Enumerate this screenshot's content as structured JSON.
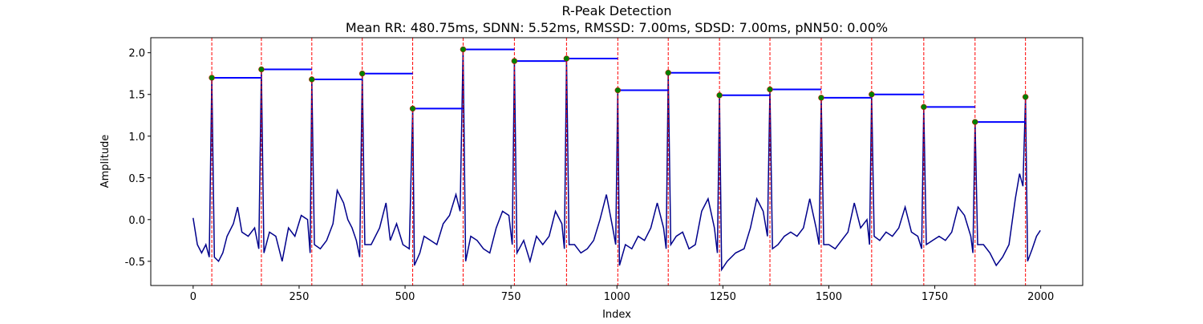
{
  "chart_data": {
    "type": "line",
    "title": "R-Peak Detection",
    "subtitle": "Mean RR: 480.75ms, SDNN: 5.52ms, RMSSD: 7.00ms, SDSD: 7.00ms, pNN50: 0.00%",
    "xlabel": "Index",
    "ylabel": "Amplitude",
    "xlim": [
      -100,
      2099
    ],
    "ylim": [
      -0.79,
      2.18
    ],
    "xticks": [
      0,
      250,
      500,
      750,
      1000,
      1250,
      1500,
      1750,
      2000
    ],
    "yticks": [
      -0.5,
      {
        "value": 0,
        "label": "0.0"
      },
      0.5,
      {
        "value": 1,
        "label": "1.0"
      },
      1.5,
      {
        "value": 2,
        "label": "2.0"
      }
    ],
    "series": [
      {
        "color": "#00008b",
        "x": [
          0,
          10,
          20,
          30,
          38,
          44,
          50,
          60,
          70,
          80,
          95,
          105,
          115,
          130,
          145,
          155,
          161,
          167,
          180,
          195,
          210,
          225,
          240,
          255,
          270,
          276,
          280,
          286,
          300,
          315,
          330,
          340,
          355,
          365,
          375,
          385,
          393,
          399,
          405,
          420,
          440,
          455,
          465,
          480,
          495,
          510,
          518,
          522,
          535,
          545,
          560,
          575,
          590,
          605,
          620,
          630,
          637,
          643,
          655,
          670,
          685,
          700,
          715,
          730,
          745,
          753,
          758,
          764,
          780,
          795,
          810,
          825,
          840,
          855,
          870,
          876,
          881,
          887,
          900,
          915,
          930,
          945,
          960,
          975,
          990,
          997,
          1002,
          1006,
          1020,
          1035,
          1050,
          1065,
          1080,
          1095,
          1110,
          1116,
          1121,
          1127,
          1140,
          1155,
          1170,
          1185,
          1200,
          1215,
          1230,
          1237,
          1242,
          1247,
          1260,
          1280,
          1300,
          1315,
          1330,
          1345,
          1355,
          1361,
          1367,
          1380,
          1395,
          1410,
          1425,
          1440,
          1455,
          1470,
          1477,
          1482,
          1488,
          1500,
          1515,
          1530,
          1545,
          1560,
          1575,
          1590,
          1596,
          1601,
          1607,
          1620,
          1635,
          1650,
          1665,
          1680,
          1695,
          1710,
          1719,
          1724,
          1730,
          1745,
          1760,
          1775,
          1790,
          1805,
          1820,
          1835,
          1840,
          1845,
          1851,
          1865,
          1880,
          1895,
          1910,
          1925,
          1940,
          1950,
          1958,
          1964,
          1969,
          1980,
          1990,
          1999
        ],
        "values": [
          0.02,
          -0.3,
          -0.4,
          -0.3,
          -0.45,
          1.7,
          -0.45,
          -0.5,
          -0.4,
          -0.2,
          -0.05,
          0.15,
          -0.15,
          -0.2,
          -0.1,
          -0.35,
          1.8,
          -0.4,
          -0.15,
          -0.2,
          -0.5,
          -0.1,
          -0.2,
          0.05,
          0.0,
          -0.4,
          1.68,
          -0.3,
          -0.35,
          -0.25,
          -0.05,
          0.35,
          0.2,
          0.0,
          -0.1,
          -0.25,
          -0.45,
          1.75,
          -0.3,
          -0.3,
          -0.1,
          0.2,
          -0.25,
          -0.05,
          -0.3,
          -0.35,
          1.33,
          -0.55,
          -0.4,
          -0.2,
          -0.25,
          -0.3,
          -0.05,
          0.05,
          0.3,
          0.1,
          2.04,
          -0.5,
          -0.2,
          -0.25,
          -0.35,
          -0.4,
          -0.1,
          0.1,
          0.05,
          -0.3,
          1.9,
          -0.4,
          -0.25,
          -0.5,
          -0.2,
          -0.3,
          -0.2,
          0.1,
          -0.05,
          -0.35,
          1.93,
          -0.3,
          -0.3,
          -0.4,
          -0.35,
          -0.25,
          0.0,
          0.3,
          -0.1,
          -0.3,
          1.55,
          -0.55,
          -0.3,
          -0.35,
          -0.2,
          -0.25,
          -0.1,
          0.2,
          -0.1,
          -0.35,
          1.76,
          -0.3,
          -0.2,
          -0.15,
          -0.35,
          -0.3,
          0.1,
          0.25,
          -0.1,
          -0.4,
          1.49,
          -0.6,
          -0.5,
          -0.4,
          -0.35,
          -0.1,
          0.25,
          0.1,
          -0.2,
          1.56,
          -0.35,
          -0.3,
          -0.2,
          -0.15,
          -0.2,
          -0.1,
          0.25,
          -0.1,
          -0.3,
          1.46,
          -0.3,
          -0.3,
          -0.35,
          -0.25,
          -0.15,
          0.2,
          -0.1,
          0.0,
          -0.3,
          1.5,
          -0.2,
          -0.25,
          -0.15,
          -0.2,
          -0.1,
          0.15,
          -0.15,
          -0.2,
          -0.35,
          1.35,
          -0.3,
          -0.25,
          -0.2,
          -0.25,
          -0.15,
          0.15,
          0.05,
          -0.2,
          -0.4,
          1.17,
          -0.3,
          -0.3,
          -0.4,
          -0.55,
          -0.45,
          -0.3,
          0.25,
          0.55,
          0.4,
          1.47,
          -0.5,
          -0.35,
          -0.2,
          -0.13
        ]
      }
    ],
    "peaks": {
      "color": "green",
      "x": [
        44,
        161,
        280,
        399,
        518,
        637,
        758,
        881,
        1002,
        1121,
        1242,
        1361,
        1482,
        1601,
        1724,
        1845,
        1964
      ],
      "values": [
        1.7,
        1.8,
        1.68,
        1.75,
        1.33,
        2.04,
        1.9,
        1.93,
        1.55,
        1.76,
        1.49,
        1.56,
        1.46,
        1.5,
        1.35,
        1.17,
        1.47
      ]
    },
    "interval_color": "#0000ff",
    "peak_line_color": "red"
  }
}
